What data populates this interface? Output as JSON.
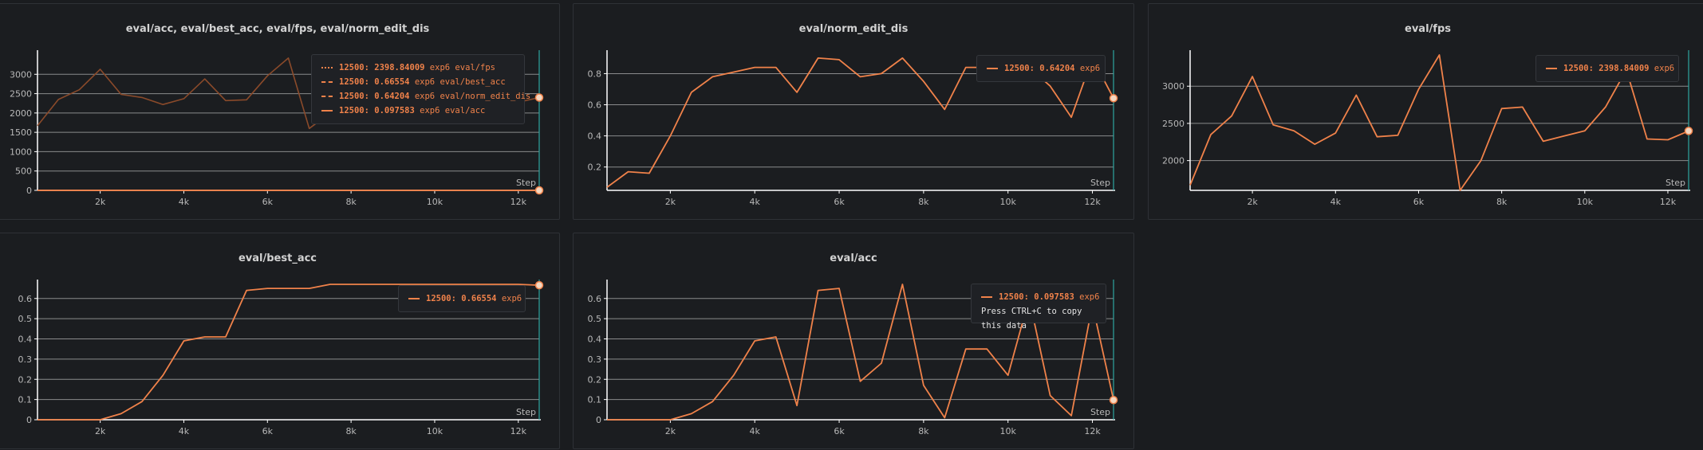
{
  "colors": {
    "series": "#f0824a",
    "series_dim": "#8a4a2a",
    "grid": "#e6e6e6",
    "axis": "#ffffff",
    "cursor": "#2fa5a0",
    "panel_bg": "#1b1d20"
  },
  "step_label": "Step",
  "chart_data": [
    {
      "type": "line",
      "title": "eval/acc, eval/best_acc, eval/fps, eval/norm_edit_dis",
      "xlabel": "Step",
      "xlim": [
        500,
        12500
      ],
      "ylim": [
        0,
        3500
      ],
      "x_ticks": [
        2000,
        4000,
        6000,
        8000,
        10000,
        12000
      ],
      "x_tick_labels": [
        "2k",
        "4k",
        "6k",
        "8k",
        "10k",
        "12k"
      ],
      "y_ticks": [
        0,
        500,
        1000,
        1500,
        2000,
        2500,
        3000
      ],
      "y_tick_labels": [
        "0",
        "500",
        "1000",
        "1500",
        "2000",
        "2500",
        "3000"
      ],
      "x": [
        500,
        1000,
        1500,
        2000,
        2500,
        3000,
        3500,
        4000,
        4500,
        5000,
        5500,
        6000,
        6500,
        7000,
        7500,
        8000,
        8500,
        9000,
        9500,
        10000,
        10500,
        11000,
        11500,
        12000,
        12500
      ],
      "series": [
        {
          "name": "eval/fps",
          "values": [
            1670,
            2350,
            2600,
            3130,
            2480,
            2400,
            2220,
            2370,
            2880,
            2320,
            2340,
            2960,
            3420,
            1600,
            2000,
            2700,
            2720,
            2260,
            2330,
            2400,
            2720,
            3220,
            2290,
            2280,
            2398.84
          ]
        },
        {
          "name": "eval/best_acc",
          "values": [
            0,
            0,
            0,
            0,
            0.03,
            0.09,
            0.22,
            0.39,
            0.41,
            0.41,
            0.64,
            0.65,
            0.65,
            0.65,
            0.67,
            0.67,
            0.67,
            0.67,
            0.67,
            0.67,
            0.67,
            0.67,
            0.67,
            0.67,
            0.66554
          ]
        },
        {
          "name": "eval/norm_edit_dis",
          "values": [
            0.07,
            0.17,
            0.16,
            0.4,
            0.68,
            0.78,
            0.81,
            0.84,
            0.84,
            0.68,
            0.9,
            0.89,
            0.78,
            0.8,
            0.9,
            0.75,
            0.57,
            0.84,
            0.84,
            0.84,
            0.84,
            0.72,
            0.52,
            0.9,
            0.64204
          ]
        },
        {
          "name": "eval/acc",
          "values": [
            0,
            0,
            0,
            0,
            0.03,
            0.09,
            0.22,
            0.39,
            0.41,
            0.07,
            0.64,
            0.65,
            0.19,
            0.28,
            0.67,
            0.17,
            0.01,
            0.35,
            0.35,
            0.22,
            0.6,
            0.12,
            0.02,
            0.57,
            0.097583
          ]
        }
      ],
      "legend": {
        "placement": "top-right",
        "entries": [
          {
            "value": "12500: 2398.84009",
            "run": "exp6",
            "name": "eval/fps",
            "style": "dotted"
          },
          {
            "value": "12500: 0.66554",
            "run": "exp6",
            "name": "eval/best_acc",
            "style": "dashed"
          },
          {
            "value": "12500: 0.64204",
            "run": "exp6",
            "name": "eval/norm_edit_dis",
            "style": "dashed"
          },
          {
            "value": "12500: 0.097583",
            "run": "exp6",
            "name": "eval/acc",
            "style": "solid"
          }
        ]
      }
    },
    {
      "type": "line",
      "title": "eval/norm_edit_dis",
      "xlabel": "Step",
      "xlim": [
        500,
        12500
      ],
      "ylim": [
        0.05,
        0.92
      ],
      "x_ticks": [
        2000,
        4000,
        6000,
        8000,
        10000,
        12000
      ],
      "x_tick_labels": [
        "2k",
        "4k",
        "6k",
        "8k",
        "10k",
        "12k"
      ],
      "y_ticks": [
        0.2,
        0.4,
        0.6,
        0.8
      ],
      "y_tick_labels": [
        "0.2",
        "0.4",
        "0.6",
        "0.8"
      ],
      "x": [
        500,
        1000,
        1500,
        2000,
        2500,
        3000,
        3500,
        4000,
        4500,
        5000,
        5500,
        6000,
        6500,
        7000,
        7500,
        8000,
        8500,
        9000,
        9500,
        10000,
        10500,
        11000,
        11500,
        12000,
        12500
      ],
      "series": [
        {
          "name": "exp6",
          "values": [
            0.07,
            0.17,
            0.16,
            0.4,
            0.68,
            0.78,
            0.81,
            0.84,
            0.84,
            0.68,
            0.9,
            0.89,
            0.78,
            0.8,
            0.9,
            0.75,
            0.57,
            0.84,
            0.84,
            0.84,
            0.84,
            0.72,
            0.52,
            0.9,
            0.64204
          ]
        }
      ],
      "legend": {
        "placement": "top-right",
        "entries": [
          {
            "value": "12500: 0.64204",
            "run": "exp6",
            "name": "",
            "style": "solid"
          }
        ]
      }
    },
    {
      "type": "line",
      "title": "eval/fps",
      "xlabel": "Step",
      "xlim": [
        500,
        12500
      ],
      "ylim": [
        1600,
        3420
      ],
      "x_ticks": [
        2000,
        4000,
        6000,
        8000,
        10000,
        12000
      ],
      "x_tick_labels": [
        "2k",
        "4k",
        "6k",
        "8k",
        "10k",
        "12k"
      ],
      "y_ticks": [
        2000,
        2500,
        3000
      ],
      "y_tick_labels": [
        "2000",
        "2500",
        "3000"
      ],
      "x": [
        500,
        1000,
        1500,
        2000,
        2500,
        3000,
        3500,
        4000,
        4500,
        5000,
        5500,
        6000,
        6500,
        7000,
        7500,
        8000,
        8500,
        9000,
        9500,
        10000,
        10500,
        11000,
        11500,
        12000,
        12500
      ],
      "series": [
        {
          "name": "exp6",
          "values": [
            1670,
            2350,
            2600,
            3130,
            2480,
            2400,
            2220,
            2370,
            2880,
            2320,
            2340,
            2960,
            3420,
            1600,
            2000,
            2700,
            2720,
            2260,
            2330,
            2400,
            2720,
            3220,
            2290,
            2280,
            2398.84
          ]
        }
      ],
      "legend": {
        "placement": "top-right",
        "entries": [
          {
            "value": "12500: 2398.84009",
            "run": "exp6",
            "name": "",
            "style": "solid"
          }
        ]
      }
    },
    {
      "type": "line",
      "title": "eval/best_acc",
      "xlabel": "Step",
      "xlim": [
        500,
        12500
      ],
      "ylim": [
        0,
        0.67
      ],
      "x_ticks": [
        2000,
        4000,
        6000,
        8000,
        10000,
        12000
      ],
      "x_tick_labels": [
        "2k",
        "4k",
        "6k",
        "8k",
        "10k",
        "12k"
      ],
      "y_ticks": [
        0,
        0.1,
        0.2,
        0.3,
        0.4,
        0.5,
        0.6
      ],
      "y_tick_labels": [
        "0",
        "0.1",
        "0.2",
        "0.3",
        "0.4",
        "0.5",
        "0.6"
      ],
      "x": [
        500,
        1000,
        1500,
        2000,
        2500,
        3000,
        3500,
        4000,
        4500,
        5000,
        5500,
        6000,
        6500,
        7000,
        7500,
        8000,
        8500,
        9000,
        9500,
        10000,
        10500,
        11000,
        11500,
        12000,
        12500
      ],
      "series": [
        {
          "name": "exp6",
          "values": [
            0,
            0,
            0,
            0,
            0.03,
            0.09,
            0.22,
            0.39,
            0.41,
            0.41,
            0.64,
            0.65,
            0.65,
            0.65,
            0.67,
            0.67,
            0.67,
            0.67,
            0.67,
            0.67,
            0.67,
            0.67,
            0.67,
            0.67,
            0.66554
          ]
        }
      ],
      "legend": {
        "placement": "top-right",
        "entries": [
          {
            "value": "12500: 0.66554",
            "run": "exp6",
            "name": "",
            "style": "solid"
          }
        ]
      }
    },
    {
      "type": "line",
      "title": "eval/acc",
      "xlabel": "Step",
      "xlim": [
        500,
        12500
      ],
      "ylim": [
        0,
        0.67
      ],
      "x_ticks": [
        2000,
        4000,
        6000,
        8000,
        10000,
        12000
      ],
      "x_tick_labels": [
        "2k",
        "4k",
        "6k",
        "8k",
        "10k",
        "12k"
      ],
      "y_ticks": [
        0,
        0.1,
        0.2,
        0.3,
        0.4,
        0.5,
        0.6
      ],
      "y_tick_labels": [
        "0",
        "0.1",
        "0.2",
        "0.3",
        "0.4",
        "0.5",
        "0.6"
      ],
      "x": [
        500,
        1000,
        1500,
        2000,
        2500,
        3000,
        3500,
        4000,
        4500,
        5000,
        5500,
        6000,
        6500,
        7000,
        7500,
        8000,
        8500,
        9000,
        9500,
        10000,
        10500,
        11000,
        11500,
        12000,
        12500
      ],
      "series": [
        {
          "name": "exp6",
          "values": [
            0,
            0,
            0,
            0,
            0.03,
            0.09,
            0.22,
            0.39,
            0.41,
            0.07,
            0.64,
            0.65,
            0.19,
            0.28,
            0.67,
            0.17,
            0.01,
            0.35,
            0.35,
            0.22,
            0.6,
            0.12,
            0.02,
            0.57,
            0.097583
          ]
        }
      ],
      "legend": {
        "placement": "top-right",
        "entries": [
          {
            "value": "12500: 0.097583",
            "run": "exp6",
            "name": "",
            "style": "solid"
          }
        ],
        "hint": "Press CTRL+C to copy this data"
      }
    }
  ]
}
